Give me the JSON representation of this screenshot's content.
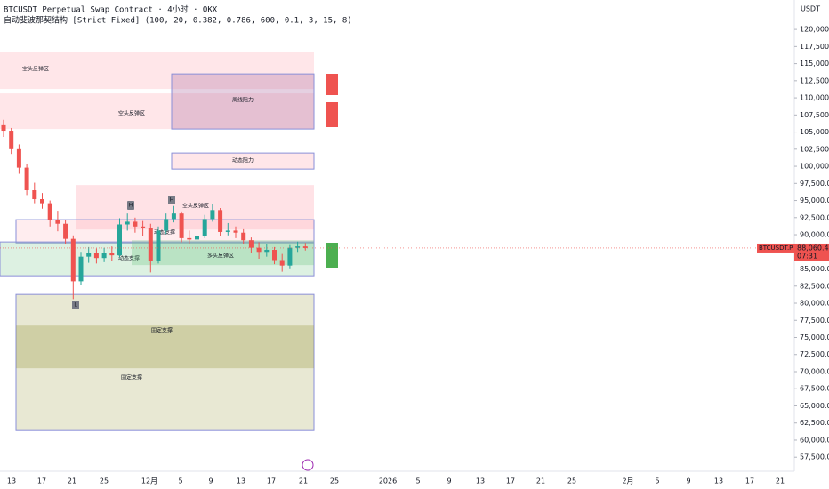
{
  "chart_data": {
    "type": "candlestick",
    "title": "BTCUSDT Perpetual Swap Contract · 4小时 · OKX",
    "subtitle": "自动斐波那契结构 [Strict Fixed] (100, 20, 0.382, 0.786, 600, 0.1, 3, 15, 8)",
    "currency": "USDT",
    "up_color": "#26a69a",
    "down_color": "#ef5350",
    "open": [
      106000,
      105200,
      102500,
      99800,
      96500,
      95200,
      94600,
      92100,
      91600,
      89400,
      83200,
      86800,
      87300,
      86600,
      87400,
      87000,
      91500,
      91900,
      91200,
      91000,
      86200,
      90600,
      92300,
      93100,
      89500,
      89300,
      89800,
      92300,
      93600,
      90400,
      90600,
      90300,
      89200,
      88100,
      87500,
      87800,
      86300,
      85500,
      88100,
      88300
    ],
    "high": [
      106800,
      105600,
      103200,
      100400,
      97600,
      96100,
      95000,
      93500,
      92200,
      89900,
      87500,
      88200,
      88000,
      88100,
      88300,
      92400,
      93100,
      92500,
      92000,
      91600,
      91200,
      93100,
      94200,
      93400,
      90600,
      90800,
      92900,
      94500,
      93900,
      91700,
      91200,
      90800,
      89600,
      88900,
      88700,
      88200,
      87200,
      88500,
      89000,
      88800
    ],
    "low": [
      104300,
      101800,
      98900,
      95800,
      94600,
      93800,
      91200,
      90500,
      88600,
      80600,
      82600,
      85900,
      85800,
      86000,
      86200,
      86700,
      90600,
      90300,
      89800,
      84500,
      85800,
      90100,
      91800,
      88900,
      88600,
      88800,
      89500,
      91900,
      89800,
      89900,
      89500,
      88700,
      87400,
      86500,
      86800,
      85700,
      84600,
      85100,
      87500,
      87700
    ],
    "close": [
      105200,
      102500,
      99800,
      96500,
      95200,
      94600,
      92100,
      91600,
      89400,
      83200,
      86800,
      87300,
      86600,
      87400,
      87000,
      91500,
      91900,
      91200,
      91000,
      86200,
      90600,
      92300,
      93100,
      89500,
      89300,
      89800,
      92300,
      93600,
      90400,
      90600,
      90300,
      89200,
      88100,
      87500,
      87800,
      86300,
      85500,
      88100,
      88300,
      88060.4
    ],
    "zones": [
      {
        "label": "空头反弹区",
        "top": 116750,
        "bottom": 111300,
        "fill": "rgba(255,182,193,0.35)",
        "border": "none"
      },
      {
        "label": "空头反弹区",
        "top": 110650,
        "bottom": 105450,
        "fill": "rgba(255,182,193,0.35)",
        "border": "none"
      },
      {
        "label": "周线阻力",
        "top": 113500,
        "bottom": 105450,
        "fill": "rgba(180,120,170,0.35)",
        "border": "#8a8fd8"
      },
      {
        "label": "动态阻力",
        "top": 101940,
        "bottom": 99600,
        "fill": "rgba(255,182,193,0.35)",
        "border": "#8a8fd8"
      },
      {
        "label": "空头反弹区",
        "top": 97260,
        "bottom": 90760,
        "fill": "rgba(255,182,193,0.4)",
        "border": "none"
      },
      {
        "label": "动态支撑",
        "top": 92200,
        "bottom": 88810,
        "fill": "rgba(255,182,193,0.25)",
        "border": "#8a8fd8"
      },
      {
        "label": "动态支撑",
        "top": 88950,
        "bottom": 84010,
        "fill": "rgba(120,200,140,0.25)",
        "border": "#8a8fd8"
      },
      {
        "label": "多头反弹区",
        "top": 89200,
        "bottom": 85570,
        "fill": "rgba(120,200,140,0.35)",
        "border": "none"
      },
      {
        "label": "固定支撑",
        "top": 81280,
        "bottom": 61400,
        "fill": "rgba(180,180,110,0.3)",
        "border": "#8a8fd8"
      },
      {
        "label": "固定支撑",
        "top": 76730,
        "bottom": 70500,
        "fill": "rgba(150,150,60,0.3)",
        "border": "none"
      }
    ],
    "pivot_labels": [
      "H",
      "H",
      "L"
    ],
    "ylim": [
      54800,
      124300
    ],
    "yticks": [
      {
        "value": 57500,
        "label": "57,500.0"
      },
      {
        "value": 60000,
        "label": "60,000.0"
      },
      {
        "value": 62500,
        "label": "62,500.0"
      },
      {
        "value": 65000,
        "label": "65,000.0"
      },
      {
        "value": 67500,
        "label": "67,500.0"
      },
      {
        "value": 70000,
        "label": "70,000.0"
      },
      {
        "value": 72500,
        "label": "72,500.0"
      },
      {
        "value": 75000,
        "label": "75,000.0"
      },
      {
        "value": 77500,
        "label": "77,500.0"
      },
      {
        "value": 80000,
        "label": "80,000.0"
      },
      {
        "value": 82500,
        "label": "82,500.0"
      },
      {
        "value": 85000,
        "label": "85,000.0"
      },
      {
        "value": 87500,
        "label": "87,500.0"
      },
      {
        "value": 90000,
        "label": "90,000.0"
      },
      {
        "value": 92500,
        "label": "92,500.0"
      },
      {
        "value": 95000,
        "label": "95,000.0"
      },
      {
        "value": 97500,
        "label": "97,500.0"
      },
      {
        "value": 100000,
        "label": "100,000.0"
      },
      {
        "value": 102500,
        "label": "102,500.0"
      },
      {
        "value": 105000,
        "label": "105,000.0"
      },
      {
        "value": 107500,
        "label": "107,500.0"
      },
      {
        "value": 110000,
        "label": "110,000.0"
      },
      {
        "value": 112500,
        "label": "112,500.0"
      },
      {
        "value": 115000,
        "label": "115,000.0"
      },
      {
        "value": 117500,
        "label": "117,500.0"
      },
      {
        "value": 120000,
        "label": "120,000.0"
      }
    ],
    "xticks": [
      "13",
      "17",
      "21",
      "25",
      "12月",
      "5",
      "9",
      "13",
      "17",
      "21",
      "25",
      "2026",
      "5",
      "9",
      "13",
      "17",
      "21",
      "25",
      "2月",
      "5",
      "9",
      "13",
      "17",
      "21"
    ],
    "last_price": {
      "value": 88060.4,
      "label": "88,060.4"
    },
    "symbol_tag": "BTCUSDT.P",
    "countdown": "07:31"
  }
}
